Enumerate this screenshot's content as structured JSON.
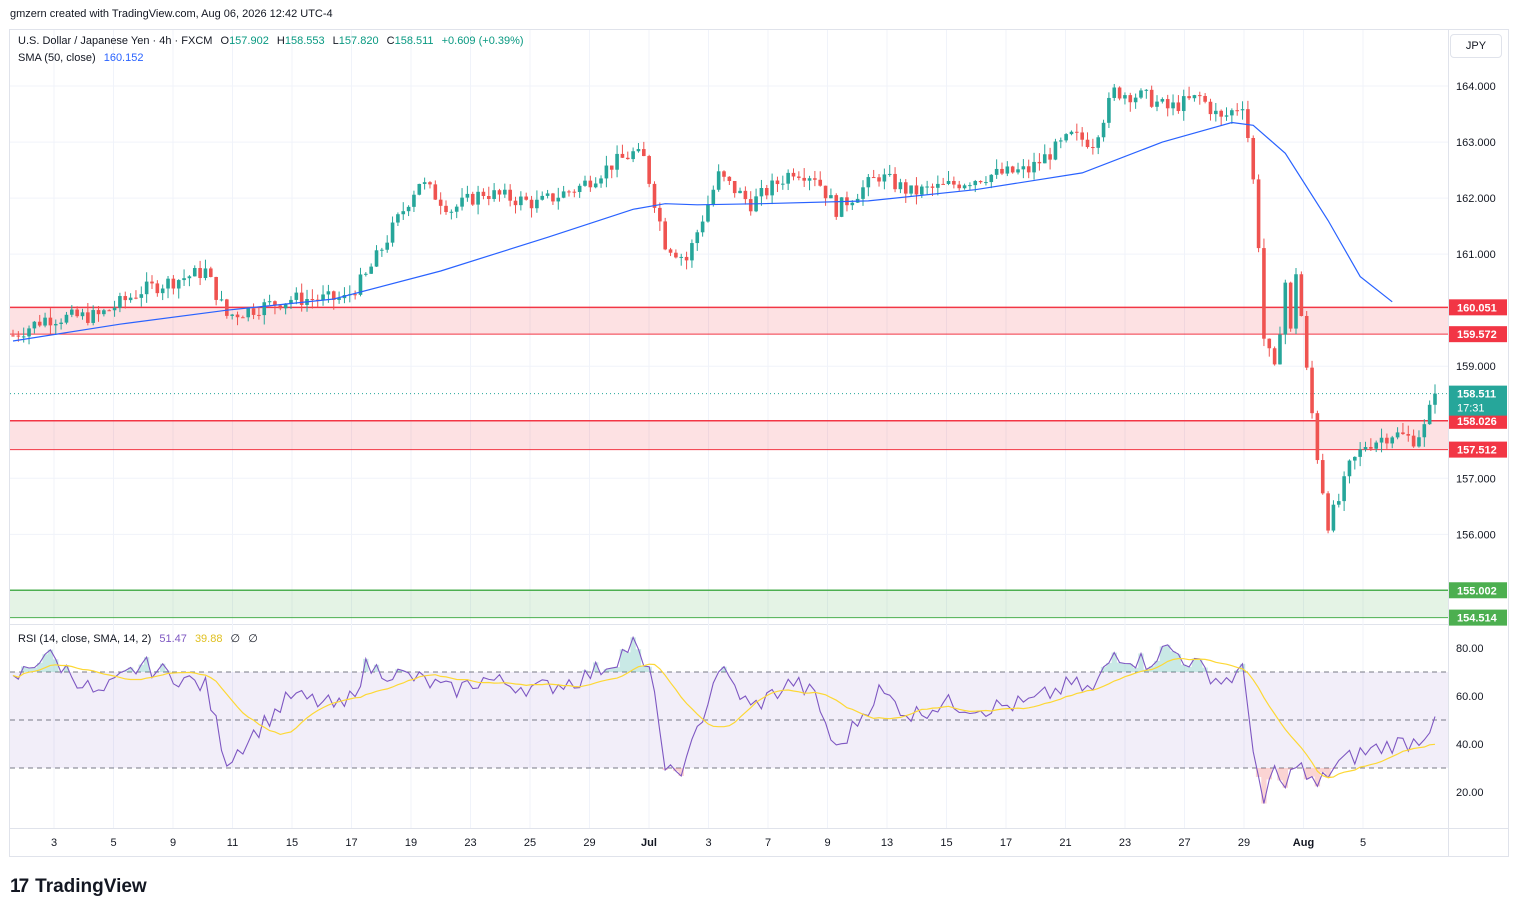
{
  "header": {
    "credit": "gmzern created with TradingView.com, Aug 06, 2026 12:42 UTC-4"
  },
  "legend": {
    "symbol": "U.S. Dollar / Japanese Yen · 4h · FXCM",
    "o_label": "O",
    "o_value": "157.902",
    "h_label": "H",
    "h_value": "158.553",
    "l_label": "L",
    "l_value": "157.820",
    "c_label": "C",
    "c_value": "158.511",
    "change": "+0.609 (+0.39%)",
    "sma_label": "SMA (50, close)",
    "sma_value": "160.152",
    "rsi_label": "RSI (14, close, SMA, 14, 2)",
    "rsi_value": "51.47",
    "rsi_ma_value": "39.88",
    "rsi_null1": "∅",
    "rsi_null2": "∅"
  },
  "currency": "JPY",
  "footer": {
    "brand": "TradingView",
    "mark": "17"
  },
  "colors": {
    "up": "#26a69a",
    "down": "#ef5350",
    "sma": "#2962ff",
    "rsi": "#7e57c2",
    "rsi_ma": "#fdd835",
    "resistance_zone": "#f23645",
    "support_zone": "#4caf50",
    "rsi_band": "#7e57c2"
  },
  "chart_data": {
    "type": "candlestick",
    "timeframe": "4h",
    "y_range": [
      154.4,
      165.0
    ],
    "price_ticks": [
      "164.000",
      "163.000",
      "162.000",
      "161.000",
      "159.000",
      "157.000",
      "156.000"
    ],
    "x_labels": [
      "3",
      "5",
      "9",
      "11",
      "15",
      "17",
      "19",
      "23",
      "25",
      "29",
      "Jul",
      "3",
      "7",
      "9",
      "13",
      "15",
      "17",
      "21",
      "23",
      "27",
      "29",
      "Aug",
      "5"
    ],
    "anchors": [
      [
        0,
        159.55
      ],
      [
        6,
        159.85
      ],
      [
        16,
        159.9
      ],
      [
        24,
        160.35
      ],
      [
        36,
        160.7
      ],
      [
        40,
        159.9
      ],
      [
        52,
        160.2
      ],
      [
        62,
        160.2
      ],
      [
        66,
        160.6
      ],
      [
        76,
        162.3
      ],
      [
        82,
        161.8
      ],
      [
        88,
        162.1
      ],
      [
        98,
        161.9
      ],
      [
        106,
        162.2
      ],
      [
        112,
        162.6
      ],
      [
        116,
        162.8
      ],
      [
        118,
        162.7
      ],
      [
        122,
        161.2
      ],
      [
        126,
        160.9
      ],
      [
        132,
        162.4
      ],
      [
        138,
        161.9
      ],
      [
        146,
        162.5
      ],
      [
        150,
        162.4
      ],
      [
        154,
        161.8
      ],
      [
        162,
        162.4
      ],
      [
        168,
        162.1
      ],
      [
        174,
        162.2
      ],
      [
        182,
        162.4
      ],
      [
        190,
        162.5
      ],
      [
        198,
        163.1
      ],
      [
        202,
        163.0
      ],
      [
        206,
        163.9
      ],
      [
        212,
        163.8
      ],
      [
        216,
        163.6
      ],
      [
        222,
        163.8
      ],
      [
        226,
        163.4
      ],
      [
        230,
        163.7
      ],
      [
        231,
        163.1
      ],
      [
        232,
        162.3
      ],
      [
        233,
        161.2
      ],
      [
        234,
        159.5
      ],
      [
        236,
        158.9
      ],
      [
        238,
        160.5
      ],
      [
        239,
        159.6
      ],
      [
        240,
        160.7
      ],
      [
        241,
        159.9
      ],
      [
        242,
        158.9
      ],
      [
        244,
        157.4
      ],
      [
        246,
        156.2
      ],
      [
        248,
        156.6
      ],
      [
        250,
        157.2
      ],
      [
        253,
        157.6
      ],
      [
        258,
        157.8
      ],
      [
        262,
        157.7
      ],
      [
        264,
        157.9
      ],
      [
        266,
        158.511
      ]
    ],
    "sma_50": {
      "name": "SMA (50, close)",
      "last": 160.152,
      "shape": "y",
      "points": [
        [
          0,
          159.45
        ],
        [
          20,
          159.75
        ],
        [
          40,
          160.0
        ],
        [
          60,
          160.2
        ],
        [
          80,
          160.7
        ],
        [
          100,
          161.3
        ],
        [
          116,
          161.8
        ],
        [
          122,
          161.9
        ],
        [
          128,
          161.88
        ],
        [
          140,
          161.9
        ],
        [
          160,
          161.95
        ],
        [
          180,
          162.15
        ],
        [
          200,
          162.45
        ],
        [
          215,
          163.0
        ],
        [
          228,
          163.35
        ],
        [
          232,
          163.3
        ],
        [
          238,
          162.8
        ],
        [
          246,
          161.6
        ],
        [
          252,
          160.6
        ],
        [
          258,
          160.15
        ]
      ]
    },
    "zones": [
      {
        "type": "resistance",
        "upper": 160.051,
        "lower": 159.572
      },
      {
        "type": "resistance",
        "upper": 158.026,
        "lower": 157.512
      },
      {
        "type": "support",
        "upper": 155.002,
        "lower": 154.514
      }
    ],
    "last_price": {
      "value": 158.511,
      "label": "158.511",
      "countdown": "17:31"
    },
    "zone_labels": [
      "160.051",
      "159.572",
      "158.026",
      "157.512",
      "155.002",
      "154.514"
    ],
    "rsi": {
      "name": "RSI (14, close, SMA, 14, 2)",
      "last": 51.47,
      "ma_last": 39.88,
      "levels": [
        70,
        50,
        30
      ],
      "ticks": [
        "80.00",
        "60.00",
        "40.00",
        "20.00"
      ]
    },
    "rsi_shape": [
      [
        0,
        66
      ],
      [
        6,
        78
      ],
      [
        16,
        60
      ],
      [
        24,
        73
      ],
      [
        36,
        64
      ],
      [
        40,
        33
      ],
      [
        52,
        60
      ],
      [
        62,
        55
      ],
      [
        66,
        72
      ],
      [
        76,
        67
      ],
      [
        82,
        62
      ],
      [
        88,
        67
      ],
      [
        98,
        63
      ],
      [
        106,
        67
      ],
      [
        112,
        74
      ],
      [
        116,
        82
      ],
      [
        118,
        72
      ],
      [
        120,
        65
      ],
      [
        122,
        26
      ],
      [
        126,
        32
      ],
      [
        132,
        72
      ],
      [
        138,
        55
      ],
      [
        146,
        66
      ],
      [
        150,
        60
      ],
      [
        154,
        37
      ],
      [
        162,
        62
      ],
      [
        168,
        52
      ],
      [
        174,
        57
      ],
      [
        182,
        55
      ],
      [
        190,
        57
      ],
      [
        198,
        65
      ],
      [
        202,
        62
      ],
      [
        206,
        78
      ],
      [
        212,
        74
      ],
      [
        216,
        80
      ],
      [
        222,
        72
      ],
      [
        226,
        66
      ],
      [
        230,
        70
      ],
      [
        232,
        40
      ],
      [
        234,
        13
      ],
      [
        236,
        30
      ],
      [
        238,
        20
      ],
      [
        240,
        34
      ],
      [
        242,
        26
      ],
      [
        244,
        22
      ],
      [
        246,
        28
      ],
      [
        248,
        32
      ],
      [
        252,
        36
      ],
      [
        258,
        40
      ],
      [
        262,
        41
      ],
      [
        264,
        44
      ],
      [
        266,
        51.47
      ]
    ]
  }
}
